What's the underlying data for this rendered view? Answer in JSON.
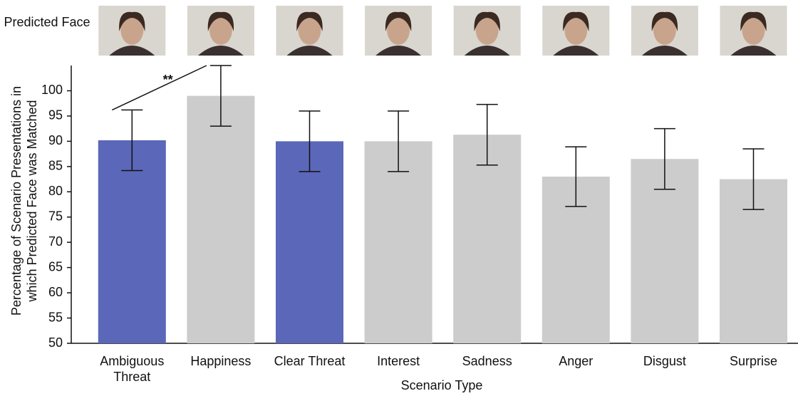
{
  "chart_data": {
    "type": "bar",
    "image_label": "Predicted Face",
    "x_label": "Scenario Type",
    "y_label": [
      "Percentage of Scenario Presentations in",
      "which Predicted Face was Matched"
    ],
    "categories": [
      "Ambiguous Threat",
      "Happiness",
      "Clear Threat",
      "Interest",
      "Sadness",
      "Anger",
      "Disgust",
      "Surprise"
    ],
    "values": [
      90.2,
      99,
      90,
      90,
      91.3,
      83,
      86.5,
      82.5
    ],
    "errors": [
      6,
      6,
      6,
      6,
      6,
      5.9,
      6,
      6
    ],
    "colors": [
      "#5b67b8",
      "#cccccc",
      "#5b67b8",
      "#cccccc",
      "#cccccc",
      "#cccccc",
      "#cccccc",
      "#cccccc"
    ],
    "significance_label": "**",
    "ylim": [
      50,
      105
    ],
    "yticks": [
      50,
      55,
      60,
      65,
      70,
      75,
      80,
      85,
      90,
      95,
      100
    ]
  }
}
